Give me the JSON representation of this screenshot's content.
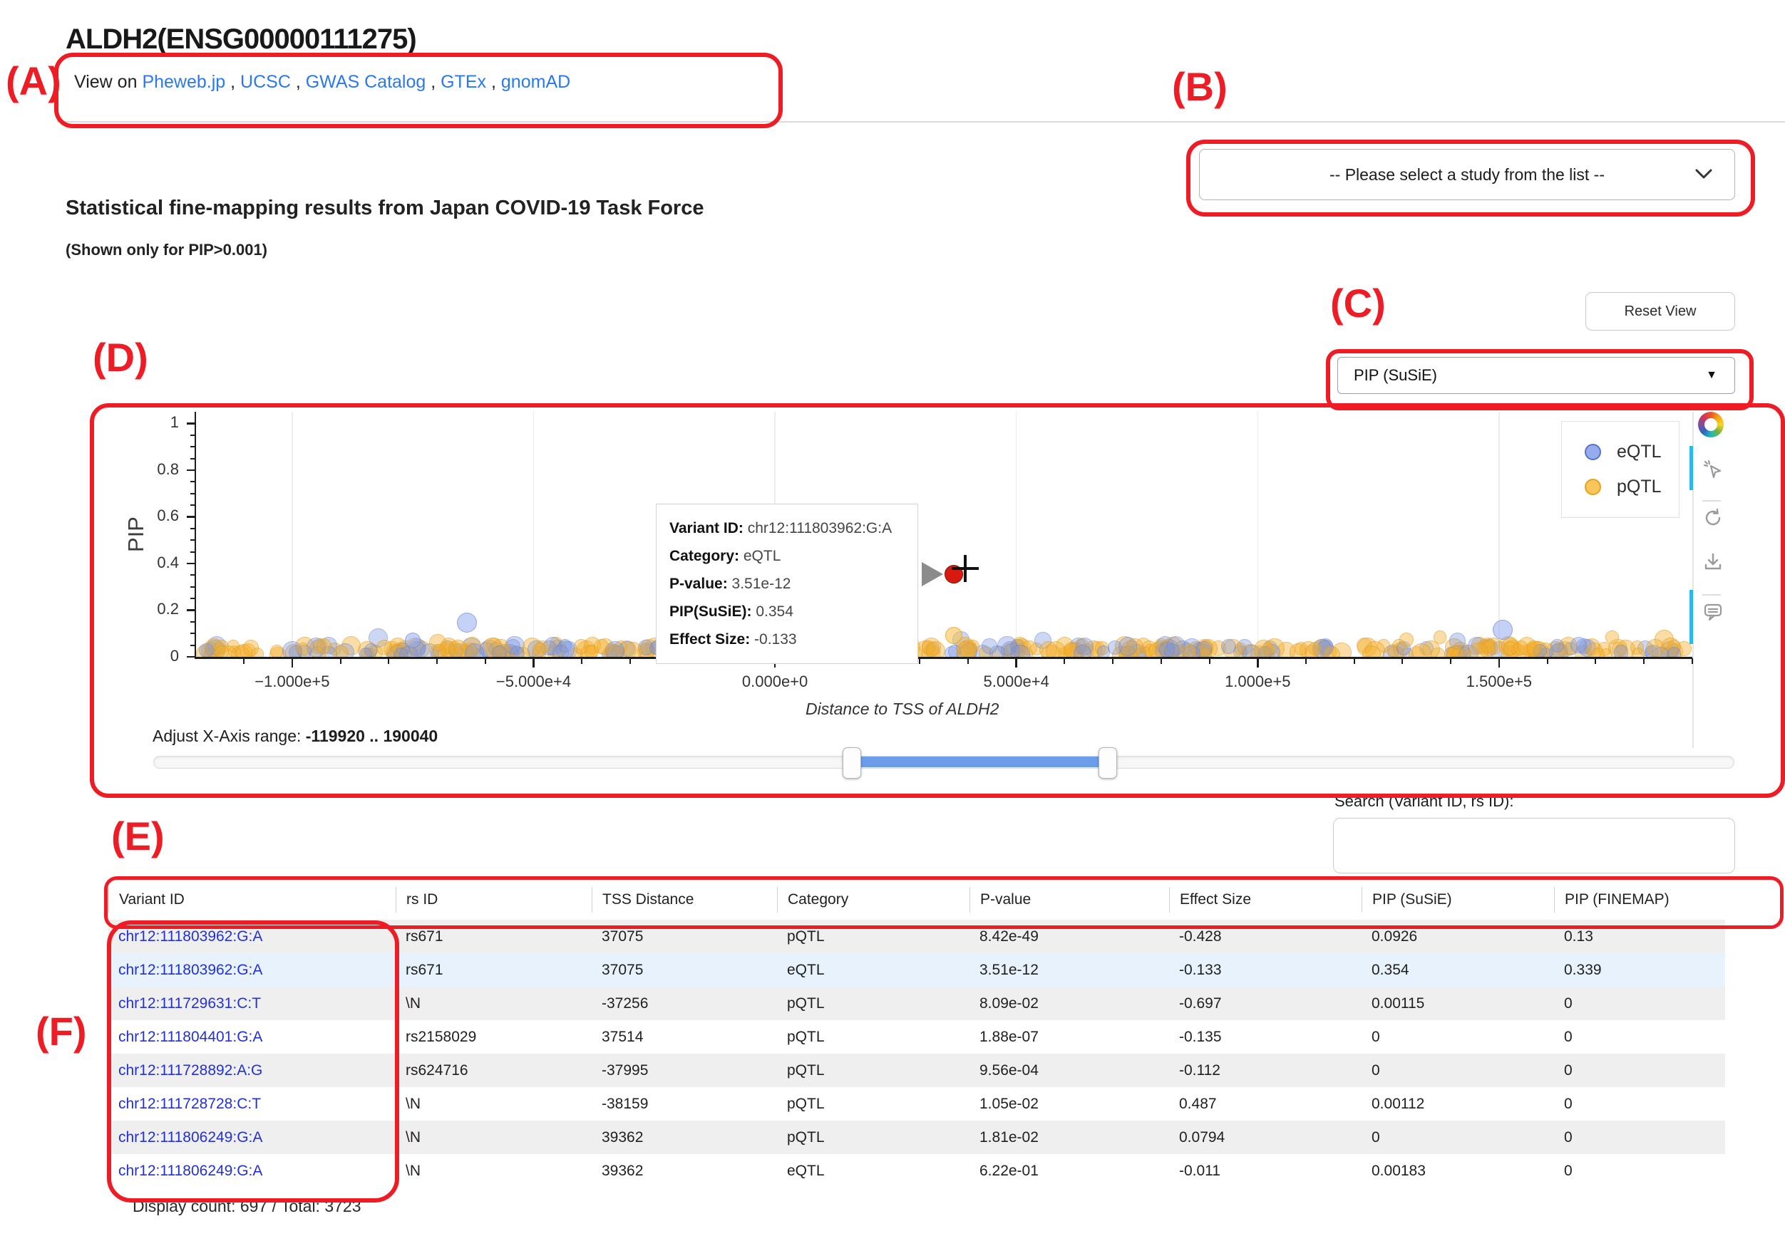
{
  "header": {
    "title": "ALDH2(ENSG00000111275)",
    "view_on": {
      "prefix": "View on",
      "separator": " , ",
      "links": [
        "Pheweb.jp",
        "UCSC",
        "GWAS Catalog",
        "GTEx",
        "gnomAD"
      ]
    }
  },
  "annotations": {
    "a": "(A)",
    "b": "(B)",
    "c": "(C)",
    "d": "(D)",
    "e": "(E)",
    "f": "(F)"
  },
  "study_select": {
    "value": "-- Please select a study from the list --"
  },
  "section": {
    "heading": "Statistical fine-mapping results from Japan COVID-19 Task Force",
    "subheading": "(Shown only for PIP>0.001)"
  },
  "controls": {
    "reset_label": "Reset View",
    "metric_select_value": "PIP (SuSiE)"
  },
  "chart_data": {
    "type": "scatter",
    "xlabel": "Distance to TSS of ALDH2",
    "ylabel": "PIP",
    "x_range": [
      -119920,
      190040
    ],
    "y_range": [
      0,
      1.05
    ],
    "grid": "vertical-gridlines-only",
    "x_ticks": [
      {
        "v": -100000,
        "label": "−1.000e+5"
      },
      {
        "v": -50000,
        "label": "−5.000e+4"
      },
      {
        "v": 0,
        "label": "0.000e+0"
      },
      {
        "v": 50000,
        "label": "5.000e+4"
      },
      {
        "v": 100000,
        "label": "1.000e+5"
      },
      {
        "v": 150000,
        "label": "1.500e+5"
      }
    ],
    "y_ticks": [
      {
        "v": 0,
        "label": "0"
      },
      {
        "v": 0.2,
        "label": "0.2"
      },
      {
        "v": 0.4,
        "label": "0.4"
      },
      {
        "v": 0.6,
        "label": "0.6"
      },
      {
        "v": 0.8,
        "label": "0.8"
      },
      {
        "v": 1,
        "label": "1"
      }
    ],
    "legend": {
      "position": "top-right",
      "entries": [
        {
          "name": "eQTL",
          "fill": "rgba(133,158,234,0.85)",
          "stroke": "#5673cc"
        },
        {
          "name": "pQTL",
          "fill": "rgba(246,193,77,0.9)",
          "stroke": "#e8a21a"
        }
      ]
    },
    "band": {
      "description": "dense overlapping semi-transparent points, PIP 0 to ~0.06, spanning full x range",
      "count": 430,
      "seed": 11,
      "x_min": -118500,
      "x_max": 188500,
      "pip_min": 0.006,
      "pip_max": 0.05,
      "orange_fraction": 0.63,
      "r_min": 9,
      "r_max": 14,
      "eqtl_fill": "rgba(122,150,226,0.38)",
      "eqtl_stroke": "rgba(95,120,205,0.35)",
      "pqtl_fill": "rgba(243,174,42,0.42)",
      "pqtl_stroke": "rgba(222,148,22,0.40)"
    },
    "highlight_points": [
      {
        "x": -63800,
        "pip": 0.145,
        "r": 14,
        "category": "eQTL"
      },
      {
        "x": 150800,
        "pip": 0.115,
        "r": 14,
        "category": "eQTL"
      },
      {
        "x": -75000,
        "pip": 0.07,
        "r": 11,
        "category": "eQTL"
      },
      {
        "x": 37075,
        "pip": 0.0926,
        "r": 12,
        "category": "pQTL"
      }
    ],
    "selected_point": {
      "x": 37075,
      "pip": 0.354,
      "r": 13,
      "fill": "#d61a10",
      "stroke": "#8f0b06",
      "variant": "chr12:111803962:G:A"
    }
  },
  "plot_tooltip": {
    "rows": [
      [
        "Variant ID:",
        "chr12:111803962:G:A"
      ],
      [
        "Category:",
        "eQTL"
      ],
      [
        "P-value:",
        "3.51e-12"
      ],
      [
        "PIP(SuSiE):",
        "0.354"
      ],
      [
        "Effect Size:",
        "-0.133"
      ]
    ]
  },
  "toolbar": {
    "tools": [
      "bokeh-logo",
      "tap-select",
      "reset",
      "download",
      "hover"
    ],
    "active_color": "#2db8e8"
  },
  "slider": {
    "label": "Adjust X-Axis range:",
    "range_text": "-119920 .. 190040"
  },
  "search": {
    "label": "Search (Variant ID, rs ID):",
    "value": ""
  },
  "table": {
    "columns": [
      "Variant ID",
      "rs ID",
      "TSS Distance",
      "Category",
      "P-value",
      "Effect Size",
      "PIP (SuSiE)",
      "PIP (FINEMAP)"
    ],
    "selected_row_index": 1,
    "selected_row_bg": "#e8f2fc",
    "rows": [
      [
        "chr12:111803962:G:A",
        "rs671",
        "37075",
        "pQTL",
        "8.42e-49",
        "-0.428",
        "0.0926",
        "0.13"
      ],
      [
        "chr12:111803962:G:A",
        "rs671",
        "37075",
        "eQTL",
        "3.51e-12",
        "-0.133",
        "0.354",
        "0.339"
      ],
      [
        "chr12:111729631:C:T",
        "\\N",
        "-37256",
        "pQTL",
        "8.09e-02",
        "-0.697",
        "0.00115",
        "0"
      ],
      [
        "chr12:111804401:G:A",
        "rs2158029",
        "37514",
        "pQTL",
        "1.88e-07",
        "-0.135",
        "0",
        "0"
      ],
      [
        "chr12:111728892:A:G",
        "rs624716",
        "-37995",
        "pQTL",
        "9.56e-04",
        "-0.112",
        "0",
        "0"
      ],
      [
        "chr12:111728728:C:T",
        "\\N",
        "-38159",
        "pQTL",
        "1.05e-02",
        "0.487",
        "0.00112",
        "0"
      ],
      [
        "chr12:111806249:G:A",
        "\\N",
        "39362",
        "pQTL",
        "1.81e-02",
        "0.0794",
        "0",
        "0"
      ],
      [
        "chr12:111806249:G:A",
        "\\N",
        "39362",
        "eQTL",
        "6.22e-01",
        "-0.011",
        "0.00183",
        "0"
      ]
    ]
  },
  "footer": {
    "display_count": "Display count: 697 / Total: 3723"
  }
}
